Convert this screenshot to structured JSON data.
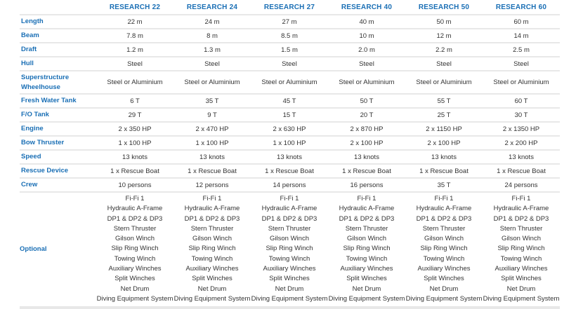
{
  "columns": [
    "RESEARCH 22",
    "RESEARCH 24",
    "RESEARCH 27",
    "RESEARCH 40",
    "RESEARCH 50",
    "RESEARCH 60"
  ],
  "rows": [
    {
      "label": [
        "Length"
      ],
      "values": [
        "22 m",
        "24 m",
        "27 m",
        "40 m",
        "50 m",
        "60 m"
      ]
    },
    {
      "label": [
        "Beam"
      ],
      "values": [
        "7.8 m",
        "8 m",
        "8.5 m",
        "10 m",
        "12 m",
        "14 m"
      ]
    },
    {
      "label": [
        "Draft"
      ],
      "values": [
        "1.2 m",
        "1.3 m",
        "1.5 m",
        "2.0 m",
        "2.2 m",
        "2.5 m"
      ]
    },
    {
      "label": [
        "Hull"
      ],
      "values": [
        "Steel",
        "Steel",
        "Steel",
        "Steel",
        "Steel",
        "Steel"
      ]
    },
    {
      "label": [
        "Superstructure",
        "Wheelhouse"
      ],
      "values": [
        "Steel or Aluminium",
        "Steel or Aluminium",
        "Steel or Aluminium",
        "Steel or Aluminium",
        "Steel or Aluminium",
        "Steel or Aluminium"
      ]
    },
    {
      "label": [
        "Fresh Water Tank"
      ],
      "values": [
        "6 T",
        "35 T",
        "45 T",
        "50 T",
        "55 T",
        "60 T"
      ]
    },
    {
      "label": [
        "F/O Tank"
      ],
      "values": [
        "29 T",
        "9 T",
        "15 T",
        "20 T",
        "25 T",
        "30 T"
      ]
    },
    {
      "label": [
        "Engine"
      ],
      "values": [
        "2 x 350 HP",
        "2 x 470 HP",
        "2 x 630 HP",
        "2 x 870 HP",
        "2 x 1150 HP",
        "2 x 1350 HP"
      ]
    },
    {
      "label": [
        "Bow Thruster"
      ],
      "values": [
        "1 x 100 HP",
        "1 x 100 HP",
        "1 x 100 HP",
        "2 x 100 HP",
        "2 x 100 HP",
        "2 x 200 HP"
      ]
    },
    {
      "label": [
        "Speed"
      ],
      "values": [
        "13 knots",
        "13 knots",
        "13 knots",
        "13 knots",
        "13 knots",
        "13 knots"
      ]
    },
    {
      "label": [
        "Rescue Device"
      ],
      "values": [
        "1 x Rescue Boat",
        "1 x Rescue Boat",
        "1 x Rescue Boat",
        "1 x Rescue Boat",
        "1 x Rescue Boat",
        "1 x Rescue Boat"
      ]
    },
    {
      "label": [
        "Crew"
      ],
      "values": [
        "10 persons",
        "12 persons",
        "14 persons",
        "16 persons",
        "35 T",
        "24 persons"
      ]
    }
  ],
  "optional": {
    "label": "Optional",
    "items": [
      "Fi-Fi 1",
      "Hydraulic A-Frame",
      "DP1 & DP2 & DP3",
      "Stern Thruster",
      "Gilson Winch",
      "Slip Ring Winch",
      "Towing Winch",
      "Auxiliary Winches",
      "Split Winches",
      "Net Drum",
      "Diving Equipment System"
    ]
  }
}
